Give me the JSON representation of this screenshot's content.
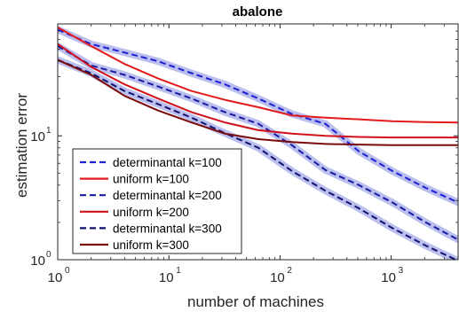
{
  "chart_data": {
    "type": "line",
    "title": "abalone",
    "xlabel": "number of machines",
    "ylabel": "estimation error",
    "xscale": "log",
    "yscale": "log",
    "xlim": [
      1,
      4000
    ],
    "ylim": [
      1,
      80
    ],
    "xticks": [
      {
        "value": 1,
        "base": "10",
        "exp": "0"
      },
      {
        "value": 10,
        "base": "10",
        "exp": "1"
      },
      {
        "value": 100,
        "base": "10",
        "exp": "2"
      },
      {
        "value": 1000,
        "base": "10",
        "exp": "3"
      }
    ],
    "yticks": [
      {
        "value": 1,
        "base": "10",
        "exp": "0"
      },
      {
        "value": 10,
        "base": "10",
        "exp": "1"
      }
    ],
    "grid": false,
    "legend_position": "bottom-left",
    "series": [
      {
        "name": "determinantal k=100",
        "color": "#1f1fd6",
        "dash": true,
        "band": true,
        "x": [
          1,
          2,
          4,
          8,
          16,
          32,
          64,
          128,
          256,
          512,
          1024,
          2048,
          4000
        ],
        "y": [
          72,
          55,
          47,
          40,
          32,
          26,
          20,
          15,
          12.5,
          7.5,
          5.2,
          3.8,
          2.9
        ]
      },
      {
        "name": "uniform k=100",
        "color": "#e31a1c",
        "dash": false,
        "band": false,
        "x": [
          1,
          2,
          4,
          8,
          16,
          32,
          64,
          128,
          256,
          512,
          1024,
          2048,
          4000
        ],
        "y": [
          75,
          53,
          38,
          29,
          23,
          19.5,
          17,
          14.6,
          14,
          13.6,
          13.1,
          12.9,
          12.8
        ]
      },
      {
        "name": "determinantal k=200",
        "color": "#1a1aa6",
        "dash": true,
        "band": true,
        "x": [
          1,
          2,
          4,
          8,
          16,
          32,
          64,
          128,
          256,
          512,
          1024,
          2048,
          4000
        ],
        "y": [
          53,
          37,
          31,
          25,
          20,
          15.5,
          12.5,
          8.4,
          5.3,
          4.0,
          2.9,
          2.0,
          1.45
        ]
      },
      {
        "name": "uniform k=200",
        "color": "#d0101a",
        "dash": false,
        "band": false,
        "x": [
          1,
          2,
          4,
          8,
          16,
          32,
          64,
          128,
          256,
          512,
          1024,
          2048,
          4000
        ],
        "y": [
          55,
          36,
          26,
          20,
          15.5,
          12.8,
          11.1,
          10.4,
          10.0,
          9.8,
          9.7,
          9.7,
          9.7
        ]
      },
      {
        "name": "determinantal k=300",
        "color": "#12126e",
        "dash": true,
        "band": true,
        "x": [
          1,
          2,
          4,
          8,
          16,
          32,
          64,
          128,
          256,
          512,
          1024,
          2048,
          4000
        ],
        "y": [
          41,
          32,
          23,
          18,
          14,
          10.5,
          8,
          5.2,
          3.6,
          2.6,
          1.8,
          1.3,
          0.98
        ]
      },
      {
        "name": "uniform k=300",
        "color": "#7a0a0a",
        "dash": false,
        "band": false,
        "x": [
          1,
          2,
          4,
          8,
          16,
          32,
          64,
          128,
          256,
          512,
          1024,
          2048,
          4000
        ],
        "y": [
          41,
          31,
          21,
          16,
          12.8,
          10.4,
          9.4,
          8.9,
          8.6,
          8.5,
          8.4,
          8.4,
          8.4
        ]
      }
    ]
  }
}
